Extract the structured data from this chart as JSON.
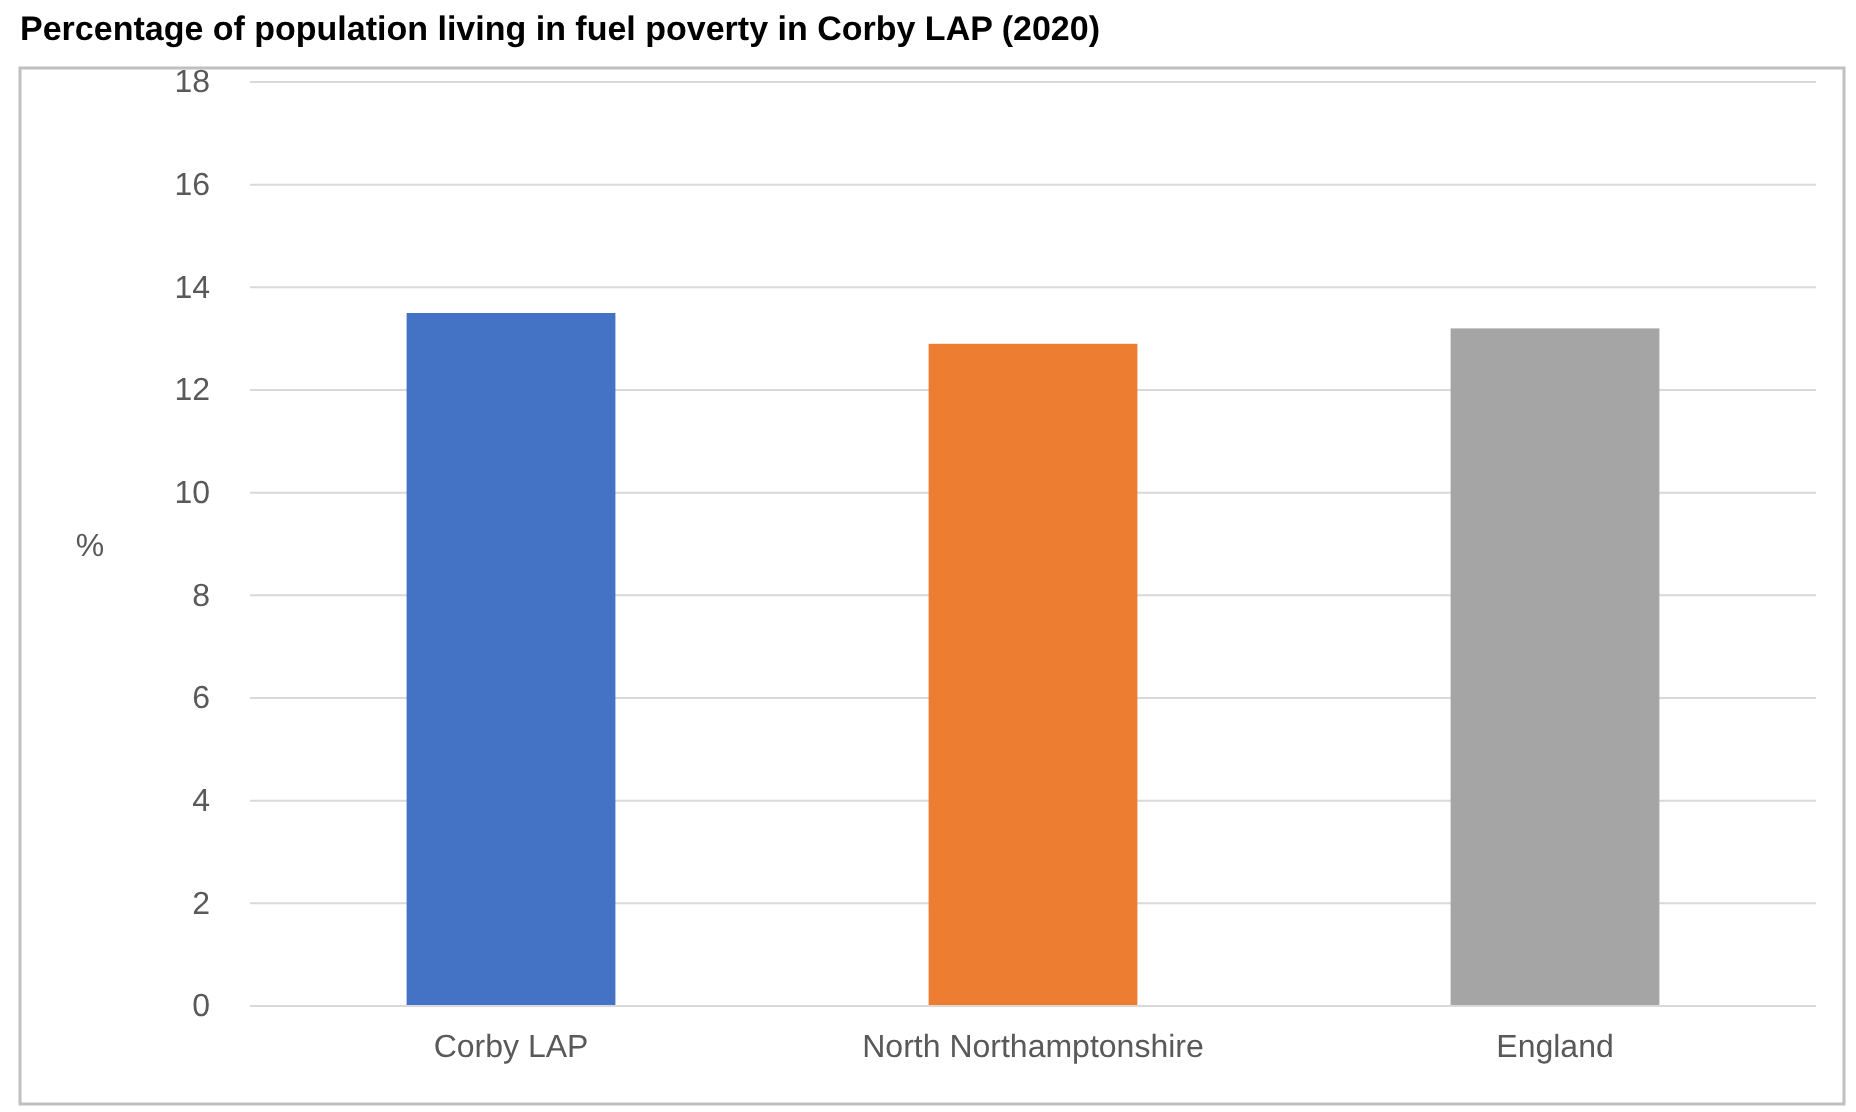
{
  "chart_data": {
    "type": "bar",
    "title": "Percentage of population living in fuel poverty in Corby LAP (2020)",
    "ylabel": "%",
    "categories": [
      "Corby LAP",
      "North Northamptonshire",
      "England"
    ],
    "values": [
      13.5,
      12.9,
      13.2
    ],
    "colors": [
      "#4472c4",
      "#ed7d31",
      "#a5a5a5"
    ],
    "ylim": [
      0,
      18
    ],
    "yticks": [
      0,
      2,
      4,
      6,
      8,
      10,
      12,
      14,
      16,
      18
    ],
    "grid": "y"
  }
}
